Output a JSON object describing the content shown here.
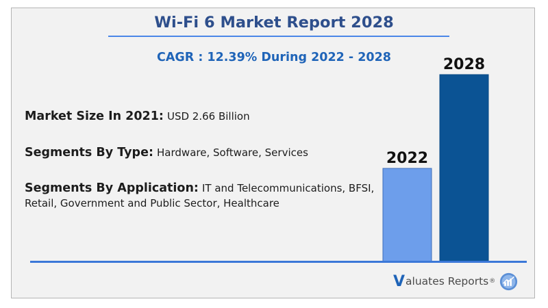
{
  "report": {
    "title": "Wi-Fi 6 Market Report 2028",
    "cagr_text": "CAGR : 12.39%  During 2022 - 2028"
  },
  "details": {
    "market_size_label": "Market Size In 2021:",
    "market_size_value": "USD 2.66 Billion",
    "type_label": "Segments By Type:",
    "type_value": "Hardware, Software, Services",
    "application_label": "Segments By Application:",
    "application_value": "IT and Telecommunications, BFSI, Retail, Government and Public Sector, Healthcare"
  },
  "chart_data": {
    "type": "bar",
    "title": "",
    "xlabel": "",
    "ylabel": "",
    "categories": [
      "2022",
      "2028"
    ],
    "values": [
      1,
      2
    ],
    "colors": [
      "#6d9eeb",
      "#0b5394"
    ],
    "grid": false,
    "legend": "none"
  },
  "brand": {
    "logo_letter": "V",
    "logo_text": "aluates Reports",
    "logo_mark": "®",
    "logo_icon": "bar-chart-circle-icon"
  },
  "colors": {
    "title": "#2e4f8c",
    "subtitle": "#1f64b8",
    "rule": "#3b78d8",
    "bar_light": "#6d9eeb",
    "bar_dark": "#0b5394",
    "card_bg": "#f2f2f2"
  }
}
